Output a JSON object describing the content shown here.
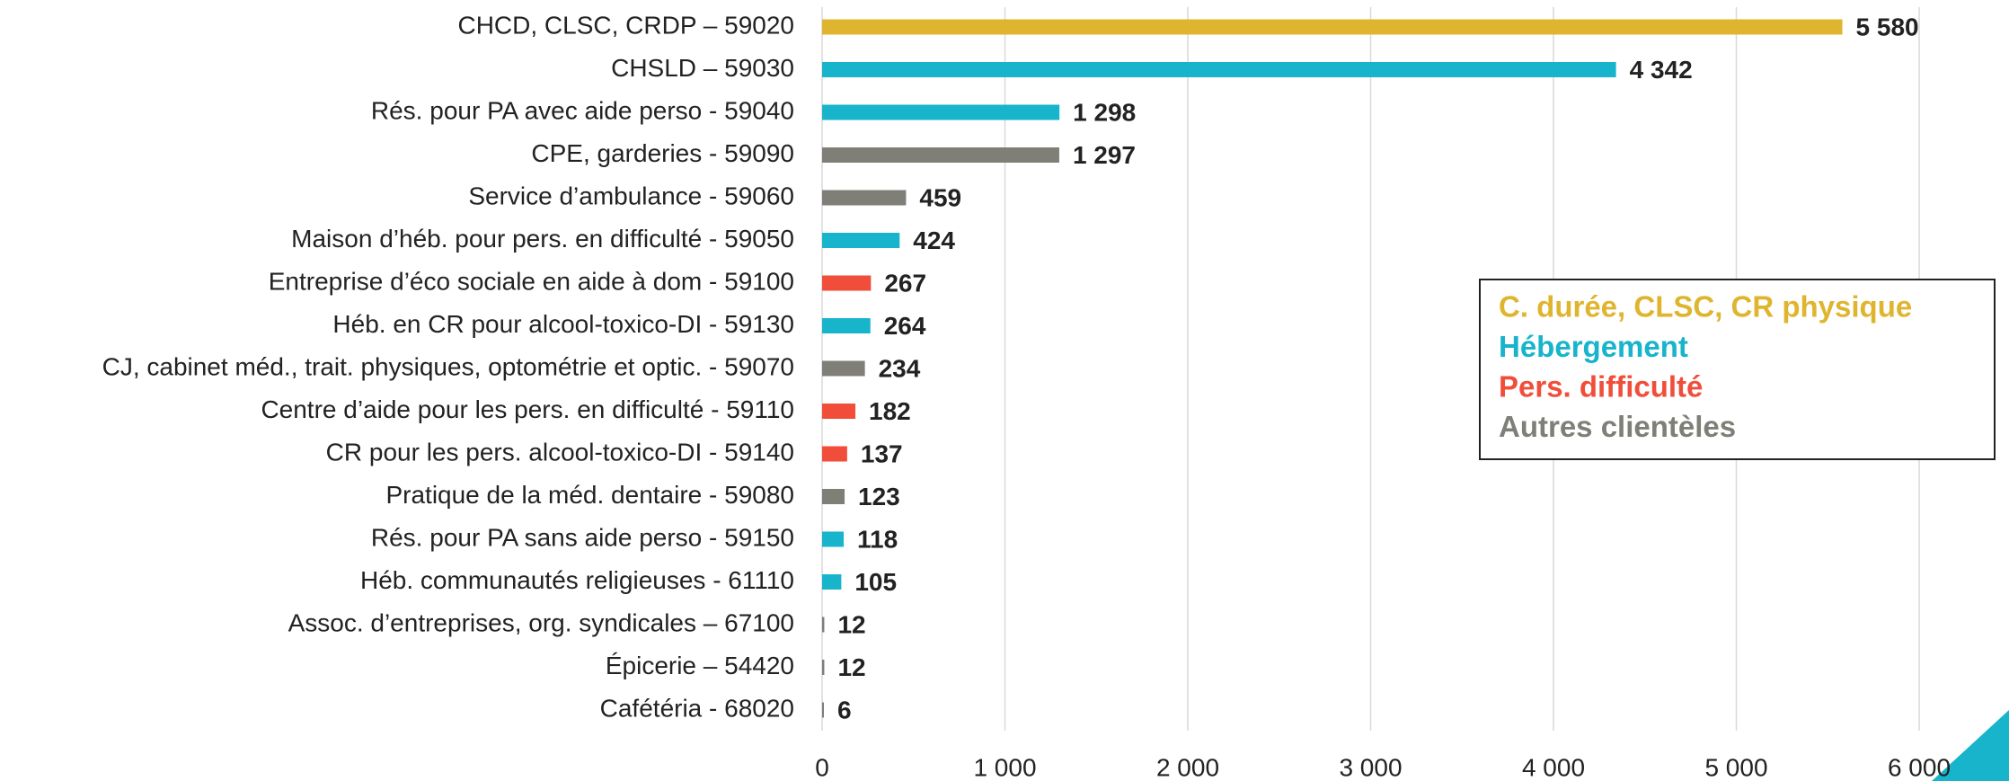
{
  "chart_data": {
    "type": "bar",
    "orientation": "horizontal",
    "categories": [
      "CHCD, CLSC, CRDP – 59020",
      "CHSLD – 59030",
      "Rés. pour PA avec aide perso - 59040",
      "CPE, garderies - 59090",
      "Service d’ambulance - 59060",
      "Maison d’héb. pour pers. en difficulté - 59050",
      "Entreprise d’éco sociale en aide à dom - 59100",
      "Héb. en CR pour alcool-toxico-DI - 59130",
      "CJ, cabinet méd., trait. physiques, optométrie et optic. - 59070",
      "Centre d’aide pour les pers. en difficulté - 59110",
      "CR pour les pers. alcool-toxico-DI - 59140",
      "Pratique de la méd. dentaire - 59080",
      "Rés. pour PA sans aide perso - 59150",
      "Héb. communautés religieuses - 61110",
      "Assoc. d’entreprises, org. syndicales – 67100",
      "Épicerie – 54420",
      "Cafétéria - 68020"
    ],
    "values": [
      5580,
      4342,
      1298,
      1297,
      459,
      424,
      267,
      264,
      234,
      182,
      137,
      123,
      118,
      105,
      12,
      12,
      6
    ],
    "value_labels": [
      "5 580",
      "4 342",
      "1 298",
      "1 297",
      "459",
      "424",
      "267",
      "264",
      "234",
      "182",
      "137",
      "123",
      "118",
      "105",
      "12",
      "12",
      "6"
    ],
    "colors": [
      "#dfb52f",
      "#17b4cc",
      "#17b4cc",
      "#7f7f78",
      "#7f7f78",
      "#17b4cc",
      "#f04e3a",
      "#17b4cc",
      "#7f7f78",
      "#f04e3a",
      "#f04e3a",
      "#7f7f78",
      "#17b4cc",
      "#17b4cc",
      "#7f7f78",
      "#7f7f78",
      "#7f7f78"
    ],
    "groups": [
      {
        "name": "C. durée, CLSC, CR physique",
        "color": "#dfb52f"
      },
      {
        "name": "Hébergement",
        "color": "#17b4cc"
      },
      {
        "name": "Pers. difficulté",
        "color": "#f04e3a"
      },
      {
        "name": "Autres clientèles",
        "color": "#7f7f78"
      }
    ],
    "legend": "right",
    "xlim": [
      0,
      6000
    ],
    "xticks": [
      0,
      {
        "value": 1000,
        "label": "1 000"
      },
      {
        "value": 2000,
        "label": "2 000"
      },
      {
        "value": 3000,
        "label": "3 000"
      },
      {
        "value": 4000,
        "label": "4 000"
      },
      {
        "value": 5000,
        "label": "5 000"
      },
      {
        "value": 6000,
        "label": "6 000"
      }
    ],
    "grid": true
  }
}
